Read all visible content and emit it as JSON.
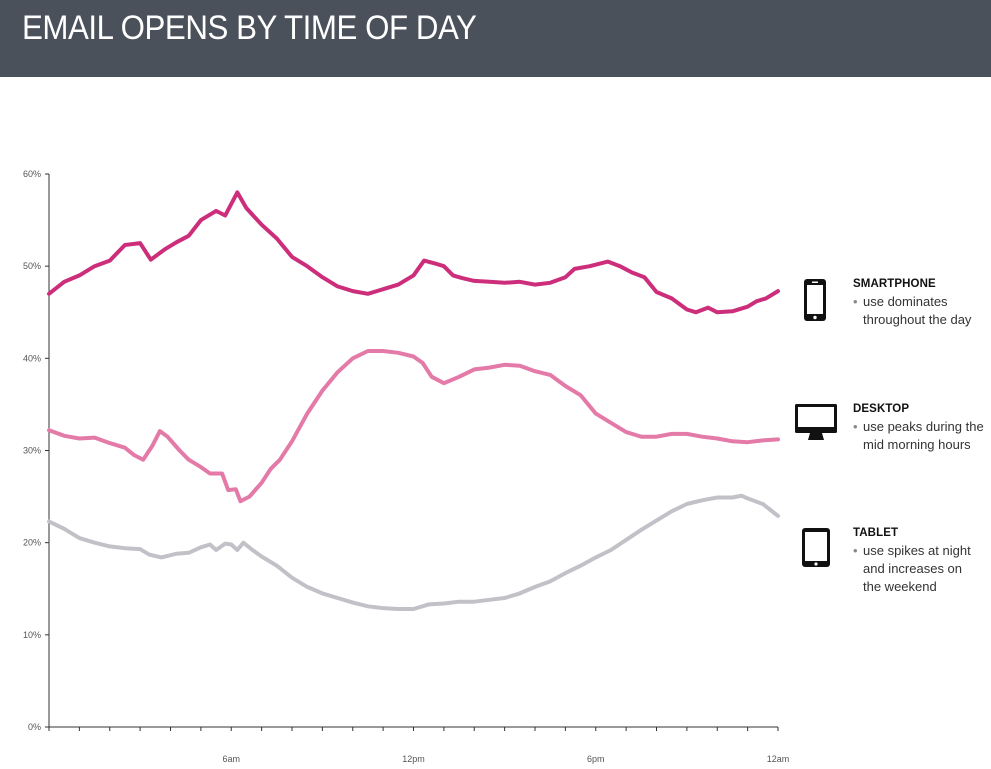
{
  "header": {
    "title": "EMAIL OPENS BY TIME OF DAY",
    "background": "#4b515a"
  },
  "chart_data": {
    "type": "line",
    "title": "EMAIL OPENS BY TIME OF DAY",
    "xlabel": "",
    "ylabel": "",
    "x_tick_labels": [
      "6am",
      "12pm",
      "6pm",
      "12am"
    ],
    "y_tick_labels": [
      "0%",
      "10%",
      "20%",
      "30%",
      "40%",
      "50%",
      "60%"
    ],
    "ylim": [
      0,
      60
    ],
    "x_unit": "hours",
    "xlim": [
      0,
      24
    ],
    "x_ticks": [
      6,
      12,
      18,
      24
    ],
    "grid": false,
    "series": [
      {
        "name": "SMARTPHONE",
        "color": "#cc2e7b",
        "points": [
          [
            0,
            47
          ],
          [
            0.5,
            48.3
          ],
          [
            1,
            49
          ],
          [
            1.5,
            50
          ],
          [
            2,
            50.6
          ],
          [
            2.5,
            52.3
          ],
          [
            3,
            52.5
          ],
          [
            3.35,
            50.7
          ],
          [
            3.8,
            51.8
          ],
          [
            4.2,
            52.6
          ],
          [
            4.6,
            53.3
          ],
          [
            5,
            55
          ],
          [
            5.5,
            56
          ],
          [
            5.8,
            55.5
          ],
          [
            6.2,
            58
          ],
          [
            6.5,
            56.3
          ],
          [
            7,
            54.5
          ],
          [
            7.5,
            53
          ],
          [
            8,
            51
          ],
          [
            8.5,
            50
          ],
          [
            9,
            48.8
          ],
          [
            9.5,
            47.8
          ],
          [
            10,
            47.3
          ],
          [
            10.5,
            47
          ],
          [
            11,
            47.5
          ],
          [
            11.5,
            48
          ],
          [
            12,
            49
          ],
          [
            12.35,
            50.6
          ],
          [
            12.7,
            50.3
          ],
          [
            13,
            50
          ],
          [
            13.3,
            49
          ],
          [
            13.6,
            48.7
          ],
          [
            14,
            48.4
          ],
          [
            14.5,
            48.3
          ],
          [
            15,
            48.2
          ],
          [
            15.5,
            48.3
          ],
          [
            16,
            48
          ],
          [
            16.5,
            48.2
          ],
          [
            17,
            48.8
          ],
          [
            17.3,
            49.7
          ],
          [
            17.8,
            50
          ],
          [
            18.4,
            50.5
          ],
          [
            18.8,
            50
          ],
          [
            19.2,
            49.3
          ],
          [
            19.6,
            48.8
          ],
          [
            20,
            47.2
          ],
          [
            20.5,
            46.5
          ],
          [
            21,
            45.3
          ],
          [
            21.3,
            45
          ],
          [
            21.7,
            45.5
          ],
          [
            22,
            45
          ],
          [
            22.5,
            45.1
          ],
          [
            23,
            45.6
          ],
          [
            23.3,
            46.2
          ],
          [
            23.6,
            46.5
          ],
          [
            24,
            47.3
          ]
        ]
      },
      {
        "name": "DESKTOP",
        "color": "#e47aa8",
        "points": [
          [
            0,
            32.2
          ],
          [
            0.5,
            31.6
          ],
          [
            1,
            31.3
          ],
          [
            1.5,
            31.4
          ],
          [
            2,
            30.8
          ],
          [
            2.5,
            30.3
          ],
          [
            2.8,
            29.5
          ],
          [
            3.1,
            29
          ],
          [
            3.4,
            30.5
          ],
          [
            3.65,
            32.1
          ],
          [
            3.9,
            31.5
          ],
          [
            4.3,
            30
          ],
          [
            4.6,
            29
          ],
          [
            5,
            28.2
          ],
          [
            5.3,
            27.5
          ],
          [
            5.7,
            27.5
          ],
          [
            5.9,
            25.7
          ],
          [
            6.15,
            25.8
          ],
          [
            6.3,
            24.5
          ],
          [
            6.6,
            25
          ],
          [
            7,
            26.5
          ],
          [
            7.3,
            28
          ],
          [
            7.6,
            29
          ],
          [
            8,
            31
          ],
          [
            8.5,
            34
          ],
          [
            9,
            36.5
          ],
          [
            9.5,
            38.5
          ],
          [
            10,
            40
          ],
          [
            10.5,
            40.8
          ],
          [
            11,
            40.8
          ],
          [
            11.5,
            40.6
          ],
          [
            12,
            40.2
          ],
          [
            12.3,
            39.5
          ],
          [
            12.6,
            38
          ],
          [
            13,
            37.3
          ],
          [
            13.5,
            38
          ],
          [
            14,
            38.8
          ],
          [
            14.5,
            39
          ],
          [
            15,
            39.3
          ],
          [
            15.5,
            39.2
          ],
          [
            16,
            38.6
          ],
          [
            16.5,
            38.2
          ],
          [
            17,
            37
          ],
          [
            17.5,
            36
          ],
          [
            18,
            34
          ],
          [
            18.5,
            33
          ],
          [
            19,
            32
          ],
          [
            19.5,
            31.5
          ],
          [
            20,
            31.5
          ],
          [
            20.5,
            31.8
          ],
          [
            21,
            31.8
          ],
          [
            21.5,
            31.5
          ],
          [
            22,
            31.3
          ],
          [
            22.5,
            31
          ],
          [
            23,
            30.9
          ],
          [
            23.5,
            31.1
          ],
          [
            24,
            31.2
          ]
        ]
      },
      {
        "name": "TABLET",
        "color": "#c3c1c8",
        "points": [
          [
            0,
            22.3
          ],
          [
            0.5,
            21.5
          ],
          [
            1,
            20.5
          ],
          [
            1.5,
            20
          ],
          [
            2,
            19.6
          ],
          [
            2.5,
            19.4
          ],
          [
            3,
            19.3
          ],
          [
            3.3,
            18.7
          ],
          [
            3.7,
            18.4
          ],
          [
            4.2,
            18.8
          ],
          [
            4.6,
            18.9
          ],
          [
            5,
            19.5
          ],
          [
            5.3,
            19.8
          ],
          [
            5.5,
            19.2
          ],
          [
            5.8,
            19.9
          ],
          [
            6,
            19.8
          ],
          [
            6.2,
            19.2
          ],
          [
            6.4,
            20
          ],
          [
            6.7,
            19.2
          ],
          [
            7,
            18.5
          ],
          [
            7.5,
            17.5
          ],
          [
            8,
            16.2
          ],
          [
            8.5,
            15.2
          ],
          [
            9,
            14.5
          ],
          [
            9.5,
            14
          ],
          [
            10,
            13.5
          ],
          [
            10.5,
            13.1
          ],
          [
            11,
            12.9
          ],
          [
            11.5,
            12.8
          ],
          [
            12,
            12.8
          ],
          [
            12.5,
            13.3
          ],
          [
            13,
            13.4
          ],
          [
            13.5,
            13.6
          ],
          [
            14,
            13.6
          ],
          [
            14.5,
            13.8
          ],
          [
            15,
            14
          ],
          [
            15.5,
            14.5
          ],
          [
            16,
            15.2
          ],
          [
            16.5,
            15.8
          ],
          [
            17,
            16.7
          ],
          [
            17.5,
            17.5
          ],
          [
            18,
            18.4
          ],
          [
            18.5,
            19.2
          ],
          [
            19,
            20.3
          ],
          [
            19.5,
            21.4
          ],
          [
            20,
            22.4
          ],
          [
            20.5,
            23.4
          ],
          [
            21,
            24.2
          ],
          [
            21.5,
            24.6
          ],
          [
            22,
            24.9
          ],
          [
            22.5,
            24.9
          ],
          [
            22.8,
            25.1
          ],
          [
            23,
            24.8
          ],
          [
            23.5,
            24.2
          ],
          [
            24,
            22.9
          ]
        ]
      }
    ]
  },
  "legend": [
    {
      "name": "SMARTPHONE",
      "icon": "smartphone-icon",
      "bullet": "•",
      "desc_line1": "use dominates",
      "desc_line2": "throughout the day"
    },
    {
      "name": "DESKTOP",
      "icon": "desktop-monitor-icon",
      "bullet": "•",
      "desc_line1": "use peaks during the",
      "desc_line2": "mid morning hours"
    },
    {
      "name": "TABLET",
      "icon": "tablet-icon",
      "bullet": "•",
      "desc_line1": "use spikes at night",
      "desc_line2": "and increases on",
      "desc_line3": "the weekend"
    }
  ]
}
